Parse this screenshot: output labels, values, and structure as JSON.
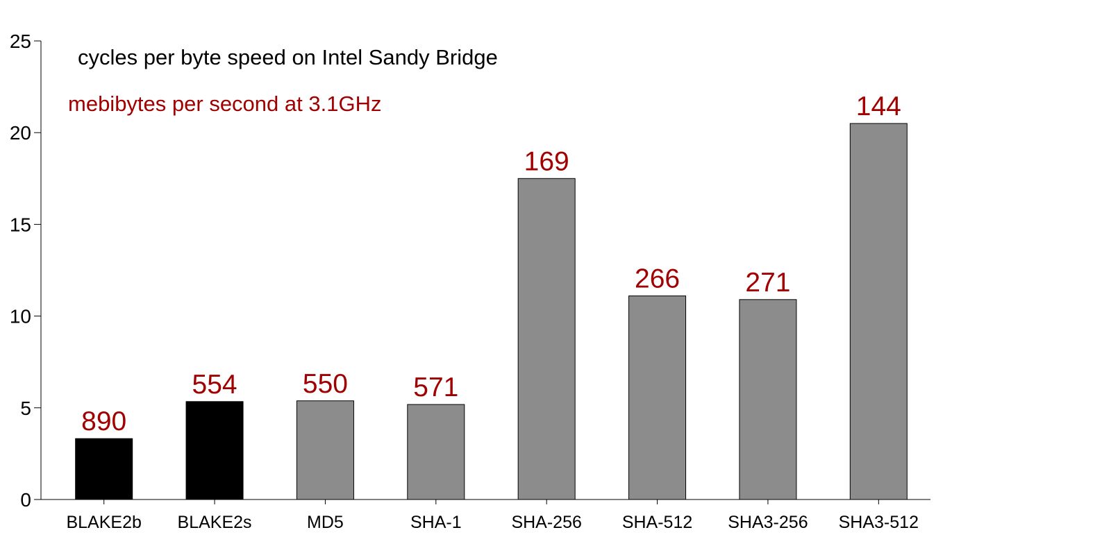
{
  "chart_data": {
    "type": "bar",
    "title": "cycles per byte speed on Intel Sandy Bridge",
    "subtitle": "mebibytes per second at 3.1GHz",
    "xlabel": "",
    "ylabel": "",
    "ylim": [
      0,
      25
    ],
    "yticks": [
      0,
      5,
      10,
      15,
      20,
      25
    ],
    "grid": false,
    "categories": [
      "BLAKE2b",
      "BLAKE2s",
      "MD5",
      "SHA-1",
      "SHA-256",
      "SHA-512",
      "SHA3-256",
      "SHA3-512"
    ],
    "values": [
      3.32,
      5.34,
      5.38,
      5.18,
      17.5,
      11.1,
      10.9,
      20.5
    ],
    "data_labels": [
      "890",
      "554",
      "550",
      "571",
      "169",
      "266",
      "271",
      "144"
    ],
    "bar_colors": [
      "#000000",
      "#000000",
      "#8c8c8c",
      "#8c8c8c",
      "#8c8c8c",
      "#8c8c8c",
      "#8c8c8c",
      "#8c8c8c"
    ],
    "label_color": "#a00000"
  }
}
